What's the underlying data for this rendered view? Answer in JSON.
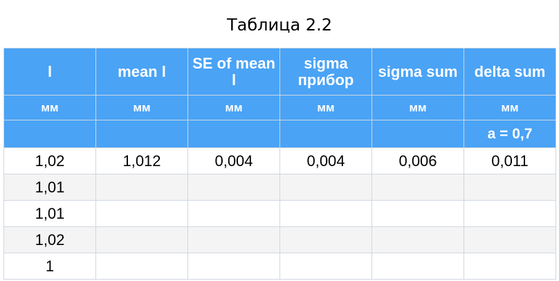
{
  "caption": "Таблица 2.2",
  "columns": [
    {
      "name": "l",
      "unit": "мм",
      "note": ""
    },
    {
      "name": "mean l",
      "unit": "мм",
      "note": ""
    },
    {
      "name": "SE of mean l",
      "unit": "мм",
      "note": ""
    },
    {
      "name": "sigma прибор",
      "unit": "мм",
      "note": ""
    },
    {
      "name": "sigma sum",
      "unit": "мм",
      "note": ""
    },
    {
      "name": "delta sum",
      "unit": "мм",
      "note": "a = 0,7"
    }
  ],
  "rows": [
    [
      "1,02",
      "1,012",
      "0,004",
      "0,004",
      "0,006",
      "0,011"
    ],
    [
      "1,01",
      "",
      "",
      "",
      "",
      ""
    ],
    [
      "1,01",
      "",
      "",
      "",
      "",
      ""
    ],
    [
      "1,02",
      "",
      "",
      "",
      "",
      ""
    ],
    [
      "1",
      "",
      "",
      "",
      "",
      ""
    ]
  ],
  "colors": {
    "header_bg": "#4aa3f5",
    "header_text": "#ffffff",
    "row_alt_bg": "#f4f4f4",
    "grid": "#d0d7e1"
  }
}
